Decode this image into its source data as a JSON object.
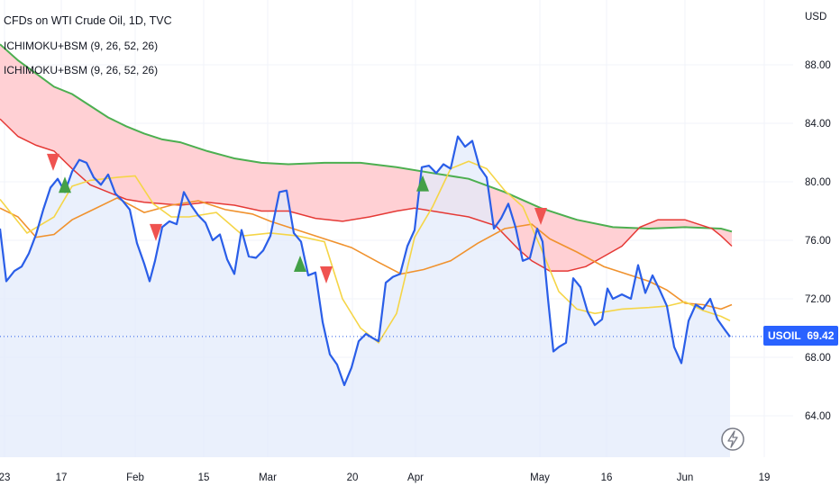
{
  "header": {
    "title": "CFDs on WTI Crude Oil, 1D, TVC",
    "indicators": [
      "ICHIMOKU+BSM (9, 26, 52, 26)",
      "ICHIMOKU+BSM (9, 26, 52, 26)"
    ]
  },
  "price_tag": {
    "symbol": "USOIL",
    "value": "69.42"
  },
  "colors": {
    "price": "#2a5ee8",
    "conversion": "#f5d547",
    "base": "#f0922e",
    "span_a": "#4caf50",
    "span_b": "#e53935",
    "bear_cloud": "#ffcdd2",
    "bull_cloud": "#c8e6c9",
    "buy": "#43a047",
    "sell": "#ef5350",
    "area": "#e3ebfb"
  },
  "chart_data": {
    "type": "line",
    "title": "CFDs on WTI Crude Oil, 1D, TVC",
    "ylabel": "USD",
    "ylim": [
      62,
      91
    ],
    "grid": true,
    "y_ticks": [
      "88.00",
      "84.00",
      "80.00",
      "76.00",
      "72.00",
      "68.00",
      "64.00"
    ],
    "x_ticks": [
      "23",
      "17",
      "Feb",
      "15",
      "Mar",
      "20",
      "Apr",
      "May",
      "16",
      "Jun",
      "19"
    ],
    "last_price": 69.42,
    "series": [
      {
        "key": "price",
        "points": [
          [
            0,
            76.8
          ],
          [
            7,
            73.2
          ],
          [
            16,
            73.9
          ],
          [
            24,
            74.2
          ],
          [
            32,
            75.1
          ],
          [
            40,
            76.4
          ],
          [
            48,
            78.1
          ],
          [
            56,
            79.6
          ],
          [
            64,
            80.2
          ],
          [
            72,
            79.3
          ],
          [
            80,
            80.7
          ],
          [
            88,
            81.5
          ],
          [
            96,
            81.3
          ],
          [
            104,
            80.3
          ],
          [
            112,
            79.8
          ],
          [
            120,
            80.5
          ],
          [
            128,
            79.2
          ],
          [
            136,
            78.7
          ],
          [
            144,
            78.1
          ],
          [
            152,
            75.8
          ],
          [
            160,
            74.4
          ],
          [
            166,
            73.2
          ],
          [
            172,
            74.6
          ],
          [
            180,
            76.9
          ],
          [
            188,
            77.3
          ],
          [
            196,
            77.1
          ],
          [
            204,
            79.3
          ],
          [
            212,
            78.4
          ],
          [
            220,
            77.7
          ],
          [
            228,
            77.2
          ],
          [
            236,
            76.0
          ],
          [
            244,
            76.4
          ],
          [
            252,
            74.7
          ],
          [
            260,
            73.7
          ],
          [
            268,
            76.7
          ],
          [
            276,
            74.9
          ],
          [
            284,
            74.8
          ],
          [
            292,
            75.3
          ],
          [
            300,
            76.3
          ],
          [
            310,
            79.3
          ],
          [
            318,
            79.4
          ],
          [
            326,
            76.5
          ],
          [
            334,
            75.9
          ],
          [
            342,
            73.6
          ],
          [
            350,
            73.8
          ],
          [
            358,
            70.4
          ],
          [
            366,
            68.2
          ],
          [
            374,
            67.5
          ],
          [
            382,
            66.1
          ],
          [
            390,
            67.3
          ],
          [
            398,
            69.1
          ],
          [
            406,
            69.6
          ],
          [
            414,
            69.3
          ],
          [
            420,
            69.1
          ],
          [
            428,
            73.1
          ],
          [
            436,
            73.5
          ],
          [
            444,
            73.7
          ],
          [
            452,
            75.6
          ],
          [
            460,
            76.7
          ],
          [
            468,
            81.0
          ],
          [
            476,
            81.1
          ],
          [
            484,
            80.6
          ],
          [
            492,
            81.2
          ],
          [
            500,
            80.9
          ],
          [
            508,
            83.1
          ],
          [
            516,
            82.4
          ],
          [
            524,
            82.8
          ],
          [
            532,
            81.0
          ],
          [
            540,
            80.3
          ],
          [
            548,
            76.8
          ],
          [
            556,
            77.5
          ],
          [
            564,
            78.5
          ],
          [
            572,
            76.9
          ],
          [
            580,
            74.6
          ],
          [
            588,
            74.8
          ],
          [
            596,
            76.8
          ],
          [
            602,
            75.9
          ],
          [
            608,
            72.0
          ],
          [
            614,
            68.4
          ],
          [
            620,
            68.7
          ],
          [
            628,
            69.0
          ],
          [
            636,
            73.4
          ],
          [
            644,
            72.8
          ],
          [
            652,
            71.1
          ],
          [
            660,
            70.2
          ],
          [
            668,
            70.6
          ],
          [
            674,
            72.7
          ],
          [
            680,
            72.0
          ],
          [
            690,
            72.3
          ],
          [
            700,
            72.0
          ],
          [
            708,
            74.3
          ],
          [
            716,
            72.4
          ],
          [
            724,
            73.6
          ],
          [
            732,
            72.6
          ],
          [
            740,
            71.5
          ],
          [
            748,
            68.7
          ],
          [
            756,
            67.6
          ],
          [
            764,
            70.5
          ],
          [
            772,
            71.6
          ],
          [
            780,
            71.3
          ],
          [
            788,
            72.0
          ],
          [
            796,
            70.6
          ],
          [
            804,
            69.9
          ],
          [
            810,
            69.4
          ]
        ]
      },
      {
        "key": "conversion",
        "points": [
          [
            0,
            78.8
          ],
          [
            30,
            76.5
          ],
          [
            60,
            77.6
          ],
          [
            80,
            79.7
          ],
          [
            100,
            80.1
          ],
          [
            130,
            80.3
          ],
          [
            150,
            80.4
          ],
          [
            170,
            78.5
          ],
          [
            190,
            77.6
          ],
          [
            210,
            77.6
          ],
          [
            240,
            77.9
          ],
          [
            270,
            76.3
          ],
          [
            300,
            76.5
          ],
          [
            330,
            76.3
          ],
          [
            360,
            75.9
          ],
          [
            380,
            72.0
          ],
          [
            400,
            70.0
          ],
          [
            420,
            69.0
          ],
          [
            440,
            71.0
          ],
          [
            460,
            76.2
          ],
          [
            480,
            78.3
          ],
          [
            500,
            80.9
          ],
          [
            520,
            81.4
          ],
          [
            540,
            80.9
          ],
          [
            560,
            79.4
          ],
          [
            580,
            78.3
          ],
          [
            600,
            75.5
          ],
          [
            620,
            72.5
          ],
          [
            640,
            71.3
          ],
          [
            660,
            71.0
          ],
          [
            690,
            71.3
          ],
          [
            720,
            71.4
          ],
          [
            740,
            71.5
          ],
          [
            760,
            71.8
          ],
          [
            780,
            71.2
          ],
          [
            800,
            70.8
          ],
          [
            810,
            70.5
          ]
        ]
      },
      {
        "key": "base",
        "points": [
          [
            0,
            78.2
          ],
          [
            20,
            77.6
          ],
          [
            40,
            76.2
          ],
          [
            60,
            76.4
          ],
          [
            80,
            77.4
          ],
          [
            100,
            78.0
          ],
          [
            130,
            78.9
          ],
          [
            160,
            77.9
          ],
          [
            190,
            78.4
          ],
          [
            220,
            78.7
          ],
          [
            250,
            78.1
          ],
          [
            280,
            77.8
          ],
          [
            300,
            77.3
          ],
          [
            330,
            76.7
          ],
          [
            360,
            76.1
          ],
          [
            390,
            75.5
          ],
          [
            420,
            74.5
          ],
          [
            445,
            73.7
          ],
          [
            470,
            74.0
          ],
          [
            500,
            74.6
          ],
          [
            530,
            75.8
          ],
          [
            560,
            76.8
          ],
          [
            590,
            77.1
          ],
          [
            610,
            76.1
          ],
          [
            640,
            75.2
          ],
          [
            670,
            74.2
          ],
          [
            700,
            73.6
          ],
          [
            720,
            73.2
          ],
          [
            740,
            72.6
          ],
          [
            760,
            71.7
          ],
          [
            780,
            71.6
          ],
          [
            800,
            71.3
          ],
          [
            812,
            71.6
          ]
        ]
      },
      {
        "key": "span_a",
        "points": [
          [
            0,
            89.4
          ],
          [
            20,
            88.3
          ],
          [
            40,
            87.4
          ],
          [
            60,
            86.5
          ],
          [
            80,
            86.0
          ],
          [
            100,
            85.2
          ],
          [
            120,
            84.4
          ],
          [
            140,
            83.8
          ],
          [
            160,
            83.3
          ],
          [
            180,
            82.9
          ],
          [
            200,
            82.7
          ],
          [
            230,
            82.1
          ],
          [
            260,
            81.6
          ],
          [
            290,
            81.3
          ],
          [
            320,
            81.2
          ],
          [
            360,
            81.3
          ],
          [
            400,
            81.3
          ],
          [
            440,
            81.0
          ],
          [
            480,
            80.6
          ],
          [
            520,
            80.2
          ],
          [
            560,
            79.3
          ],
          [
            600,
            78.2
          ],
          [
            640,
            77.4
          ],
          [
            680,
            76.9
          ],
          [
            720,
            76.8
          ],
          [
            760,
            76.9
          ],
          [
            800,
            76.8
          ],
          [
            812,
            76.6
          ]
        ]
      },
      {
        "key": "span_b",
        "points": [
          [
            0,
            84.3
          ],
          [
            20,
            83.1
          ],
          [
            40,
            82.5
          ],
          [
            60,
            82.1
          ],
          [
            80,
            80.9
          ],
          [
            100,
            79.8
          ],
          [
            120,
            79.3
          ],
          [
            140,
            78.8
          ],
          [
            160,
            78.6
          ],
          [
            180,
            78.5
          ],
          [
            200,
            78.4
          ],
          [
            230,
            78.6
          ],
          [
            260,
            78.4
          ],
          [
            290,
            78.0
          ],
          [
            320,
            78.0
          ],
          [
            350,
            77.5
          ],
          [
            380,
            77.3
          ],
          [
            410,
            77.6
          ],
          [
            440,
            78.0
          ],
          [
            460,
            78.2
          ],
          [
            490,
            77.9
          ],
          [
            520,
            77.6
          ],
          [
            550,
            77.0
          ],
          [
            575,
            75.4
          ],
          [
            590,
            74.6
          ],
          [
            610,
            73.9
          ],
          [
            630,
            73.9
          ],
          [
            650,
            74.2
          ],
          [
            670,
            74.9
          ],
          [
            690,
            75.6
          ],
          [
            710,
            76.9
          ],
          [
            730,
            77.4
          ],
          [
            760,
            77.4
          ],
          [
            790,
            76.8
          ],
          [
            800,
            76.3
          ],
          [
            812,
            75.6
          ]
        ]
      }
    ],
    "signals": [
      {
        "type": "sell",
        "x": 59,
        "y": 81.3
      },
      {
        "type": "buy",
        "x": 72,
        "y": 79.8
      },
      {
        "type": "sell",
        "x": 173,
        "y": 76.5
      },
      {
        "type": "buy",
        "x": 333,
        "y": 74.4
      },
      {
        "type": "sell",
        "x": 362,
        "y": 73.6
      },
      {
        "type": "buy",
        "x": 469,
        "y": 79.9
      },
      {
        "type": "sell",
        "x": 600,
        "y": 77.6
      }
    ]
  }
}
